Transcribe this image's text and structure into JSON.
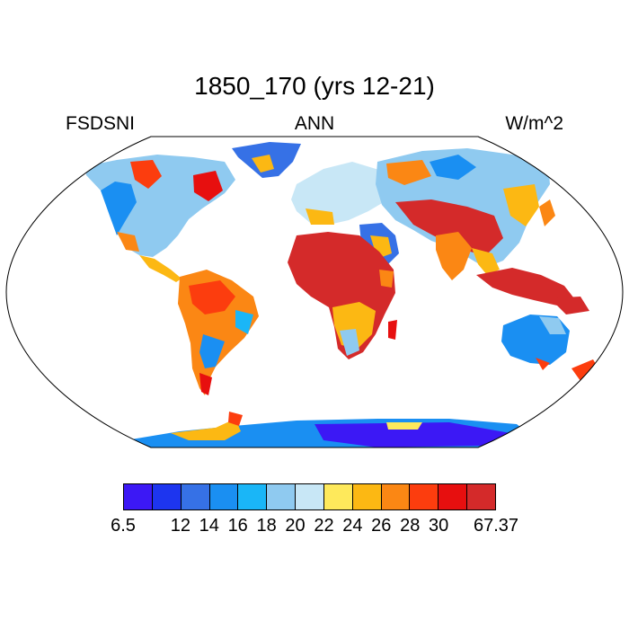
{
  "title": "1850_170 (yrs 12-21)",
  "variable": "FSDSNI",
  "season": "ANN",
  "units": "W/m^2",
  "colorbar": {
    "colors": [
      "#3c18f5",
      "#1d35ef",
      "#3671e6",
      "#1a8ff2",
      "#1ab6f7",
      "#8fcaf0",
      "#c8e7f6",
      "#fee95b",
      "#fcb813",
      "#fb8714",
      "#fc3d0e",
      "#e70f0f",
      "#d42a2a"
    ],
    "labels": [
      "6.5",
      "12",
      "14",
      "16",
      "18",
      "20",
      "22",
      "24",
      "26",
      "28",
      "30",
      "67.37"
    ],
    "label_positions": [
      0,
      2,
      3,
      4,
      5,
      6,
      7,
      8,
      9,
      10,
      11,
      13
    ]
  }
}
